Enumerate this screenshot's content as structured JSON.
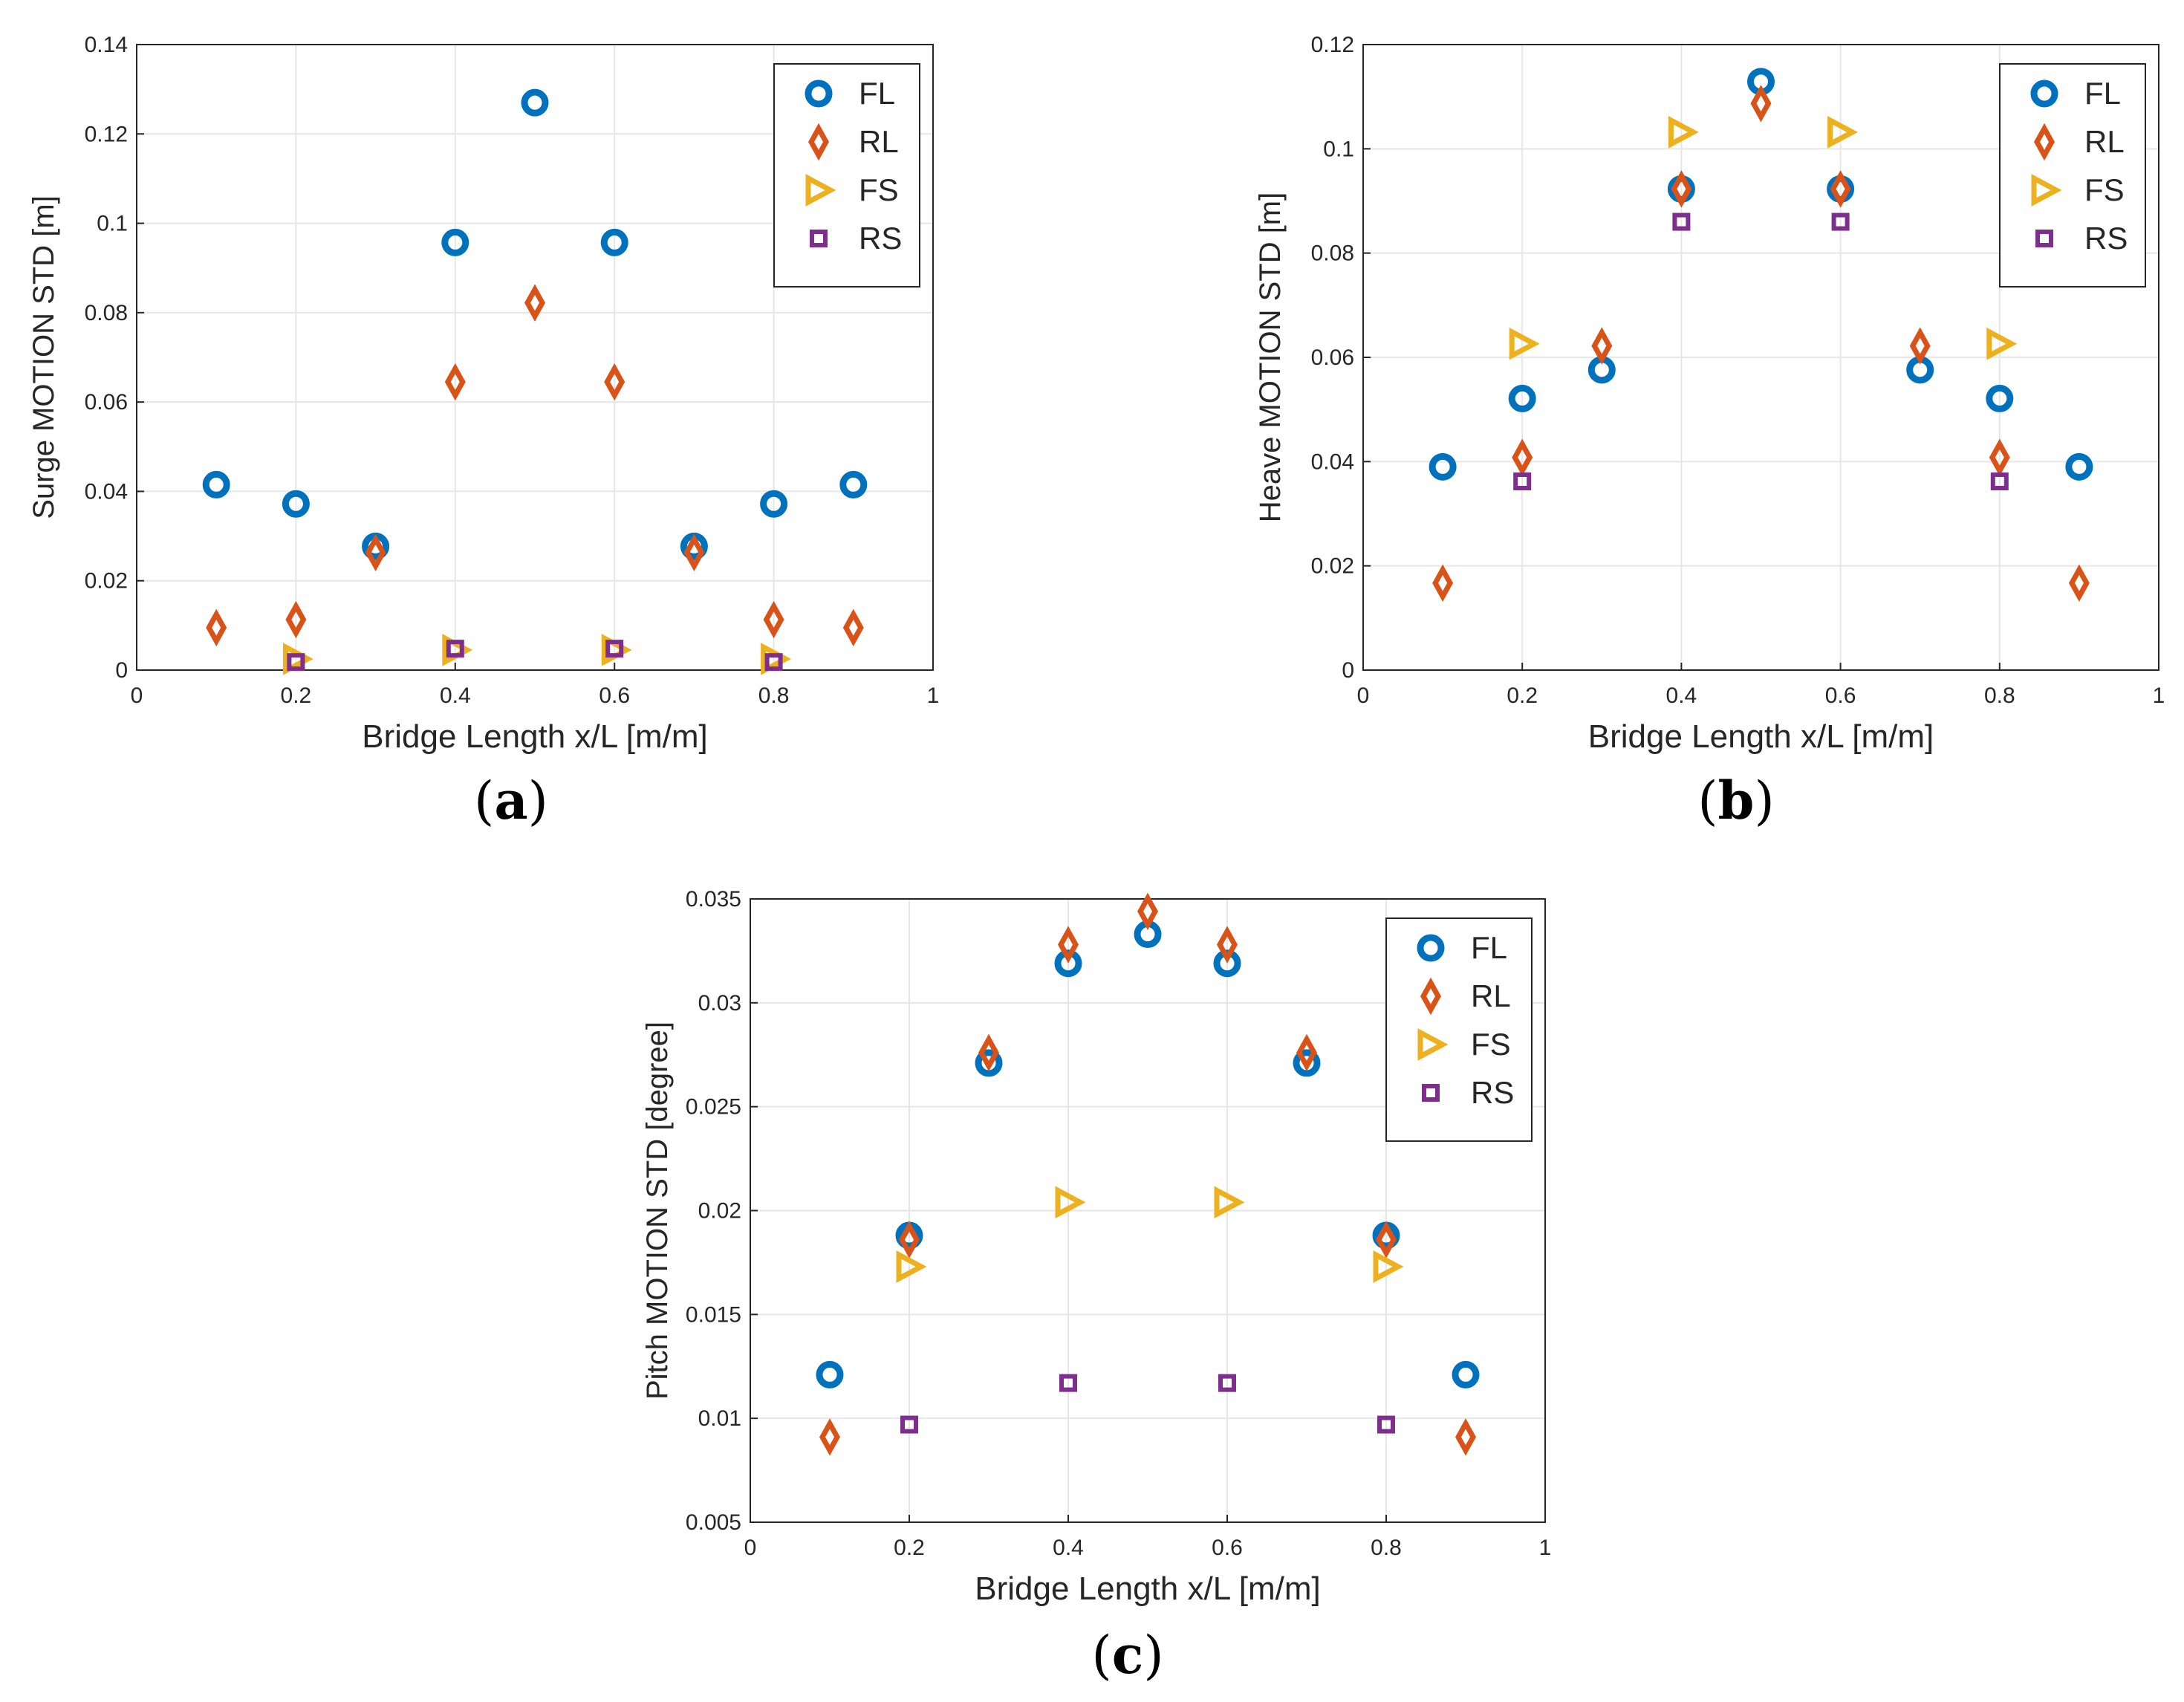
{
  "chart_data": [
    {
      "id": "a",
      "type": "scatter",
      "caption_letter": "a",
      "caption_open": "(",
      "caption_close": ")",
      "xlabel": "Bridge Length x/L [m/m]",
      "ylabel": "Surge MOTION STD [m]",
      "xlim": [
        0,
        1
      ],
      "ylim": [
        0,
        0.14
      ],
      "xticks": [
        0,
        0.2,
        0.4,
        0.6,
        0.8,
        1
      ],
      "xticklabels": [
        "0",
        "0.2",
        "0.4",
        "0.6",
        "0.8",
        "1"
      ],
      "yticks": [
        0,
        0.02,
        0.04,
        0.06,
        0.08,
        0.1,
        0.12,
        0.14
      ],
      "yticklabels": [
        "0",
        "0.02",
        "0.04",
        "0.06",
        "0.08",
        "0.1",
        "0.12",
        "0.14"
      ],
      "grid": true,
      "legend_position": "top-right",
      "series": [
        {
          "name": "FL",
          "marker": "circle",
          "color": "#0072BD",
          "x": [
            0.1,
            0.2,
            0.3,
            0.4,
            0.5,
            0.6,
            0.7,
            0.8,
            0.9
          ],
          "y": [
            0.0415,
            0.0372,
            0.0277,
            0.0957,
            0.127,
            0.0957,
            0.0277,
            0.0372,
            0.0415
          ]
        },
        {
          "name": "RL",
          "marker": "diamond",
          "color": "#D95319",
          "x": [
            0.1,
            0.2,
            0.3,
            0.4,
            0.5,
            0.6,
            0.7,
            0.8,
            0.9
          ],
          "y": [
            0.0095,
            0.0113,
            0.0263,
            0.0645,
            0.0822,
            0.0645,
            0.0263,
            0.0113,
            0.0095
          ]
        },
        {
          "name": "FS",
          "marker": "triangle-right",
          "color": "#EDB120",
          "x": [
            0.2,
            0.4,
            0.6,
            0.8
          ],
          "y": [
            0.0025,
            0.0045,
            0.0045,
            0.0025
          ]
        },
        {
          "name": "RS",
          "marker": "square",
          "color": "#7E2F8E",
          "x": [
            0.2,
            0.4,
            0.6,
            0.8
          ],
          "y": [
            0.0018,
            0.0048,
            0.0048,
            0.0018
          ]
        }
      ]
    },
    {
      "id": "b",
      "type": "scatter",
      "caption_letter": "b",
      "caption_open": "(",
      "caption_close": ")",
      "xlabel": "Bridge Length x/L [m/m]",
      "ylabel": "Heave MOTION STD [m]",
      "xlim": [
        0,
        1
      ],
      "ylim": [
        0,
        0.12
      ],
      "xticks": [
        0,
        0.2,
        0.4,
        0.6,
        0.8,
        1
      ],
      "xticklabels": [
        "0",
        "0.2",
        "0.4",
        "0.6",
        "0.8",
        "1"
      ],
      "yticks": [
        0,
        0.02,
        0.04,
        0.06,
        0.08,
        0.1,
        0.12
      ],
      "yticklabels": [
        "0",
        "0.02",
        "0.04",
        "0.06",
        "0.08",
        "0.1",
        "0.12"
      ],
      "grid": true,
      "legend_position": "top-right",
      "series": [
        {
          "name": "FL",
          "marker": "circle",
          "color": "#0072BD",
          "x": [
            0.1,
            0.2,
            0.3,
            0.4,
            0.5,
            0.6,
            0.7,
            0.8,
            0.9
          ],
          "y": [
            0.039,
            0.0521,
            0.0576,
            0.0923,
            0.1129,
            0.0923,
            0.0576,
            0.0521,
            0.039
          ]
        },
        {
          "name": "RL",
          "marker": "diamond",
          "color": "#D95319",
          "x": [
            0.1,
            0.2,
            0.3,
            0.4,
            0.5,
            0.6,
            0.7,
            0.8,
            0.9
          ],
          "y": [
            0.0167,
            0.0408,
            0.0622,
            0.0923,
            0.1087,
            0.0923,
            0.0622,
            0.0408,
            0.0167
          ]
        },
        {
          "name": "FS",
          "marker": "triangle-right",
          "color": "#EDB120",
          "x": [
            0.2,
            0.4,
            0.6,
            0.8
          ],
          "y": [
            0.0626,
            0.1032,
            0.1032,
            0.0626
          ]
        },
        {
          "name": "RS",
          "marker": "square",
          "color": "#7E2F8E",
          "x": [
            0.2,
            0.4,
            0.6,
            0.8
          ],
          "y": [
            0.0362,
            0.086,
            0.086,
            0.0362
          ]
        }
      ]
    },
    {
      "id": "c",
      "type": "scatter",
      "caption_letter": "c",
      "caption_open": "(",
      "caption_close": ")",
      "xlabel": "Bridge Length x/L [m/m]",
      "ylabel": "Pitch MOTION STD [degree]",
      "xlim": [
        0,
        1
      ],
      "ylim": [
        0.005,
        0.035
      ],
      "xticks": [
        0,
        0.2,
        0.4,
        0.6,
        0.8,
        1
      ],
      "xticklabels": [
        "0",
        "0.2",
        "0.4",
        "0.6",
        "0.8",
        "1"
      ],
      "yticks": [
        0.005,
        0.01,
        0.015,
        0.02,
        0.025,
        0.03,
        0.035
      ],
      "yticklabels": [
        "0.005",
        "0.01",
        "0.015",
        "0.02",
        "0.025",
        "0.03",
        "0.035"
      ],
      "grid": true,
      "legend_position": "top-right",
      "series": [
        {
          "name": "FL",
          "marker": "circle",
          "color": "#0072BD",
          "x": [
            0.1,
            0.2,
            0.3,
            0.4,
            0.5,
            0.6,
            0.7,
            0.8,
            0.9
          ],
          "y": [
            0.0121,
            0.0188,
            0.0271,
            0.0319,
            0.0333,
            0.0319,
            0.0271,
            0.0188,
            0.0121
          ]
        },
        {
          "name": "RL",
          "marker": "diamond",
          "color": "#D95319",
          "x": [
            0.1,
            0.2,
            0.3,
            0.4,
            0.5,
            0.6,
            0.7,
            0.8,
            0.9
          ],
          "y": [
            0.0091,
            0.0186,
            0.0276,
            0.0328,
            0.0344,
            0.0328,
            0.0276,
            0.0186,
            0.0091
          ]
        },
        {
          "name": "FS",
          "marker": "triangle-right",
          "color": "#EDB120",
          "x": [
            0.2,
            0.4,
            0.6,
            0.8
          ],
          "y": [
            0.0173,
            0.0204,
            0.0204,
            0.0173
          ]
        },
        {
          "name": "RS",
          "marker": "square",
          "color": "#7E2F8E",
          "x": [
            0.2,
            0.4,
            0.6,
            0.8
          ],
          "y": [
            0.0097,
            0.0117,
            0.0117,
            0.0097
          ]
        }
      ]
    }
  ]
}
